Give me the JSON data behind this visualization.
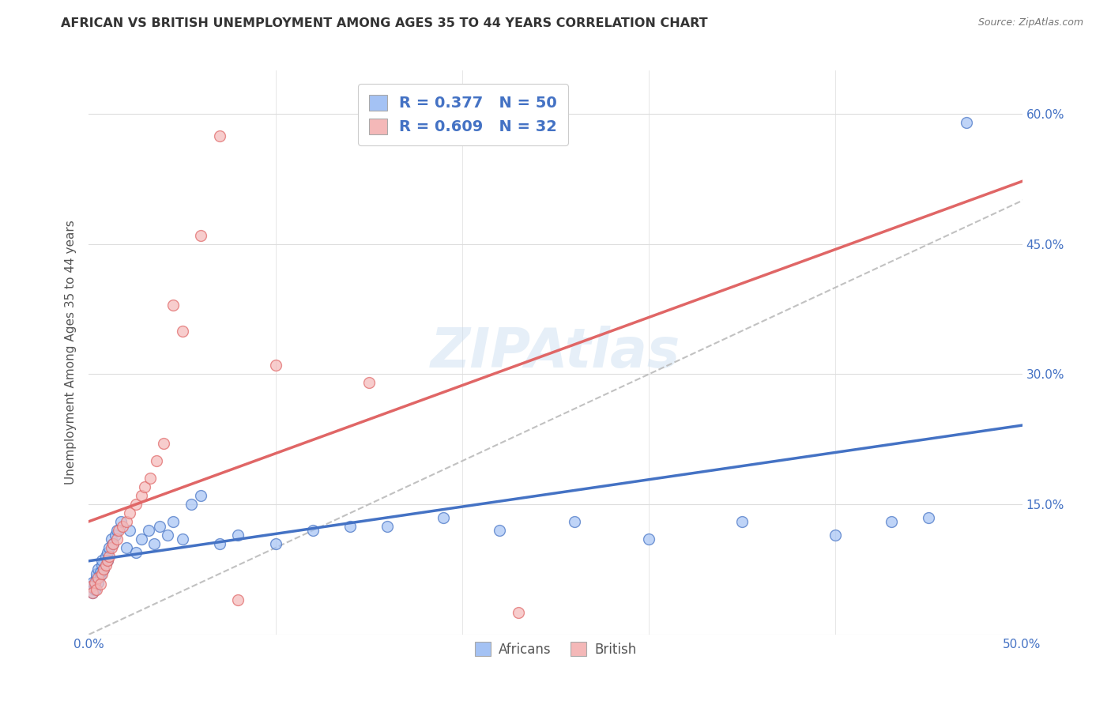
{
  "title": "AFRICAN VS BRITISH UNEMPLOYMENT AMONG AGES 35 TO 44 YEARS CORRELATION CHART",
  "source": "Source: ZipAtlas.com",
  "ylabel": "Unemployment Among Ages 35 to 44 years",
  "xlabel_africans": "Africans",
  "xlabel_british": "British",
  "xlim": [
    0.0,
    0.5
  ],
  "ylim": [
    0.0,
    0.65
  ],
  "legend_africans_R": "0.377",
  "legend_africans_N": "50",
  "legend_british_R": "0.609",
  "legend_british_N": "32",
  "color_africans": "#a4c2f4",
  "color_british": "#f4b8b8",
  "color_africans_line": "#4472c4",
  "color_british_line": "#e06666",
  "color_diagonal": "#bbbbbb",
  "africans_x": [
    0.001,
    0.002,
    0.002,
    0.003,
    0.003,
    0.004,
    0.004,
    0.005,
    0.005,
    0.006,
    0.006,
    0.007,
    0.007,
    0.008,
    0.009,
    0.01,
    0.01,
    0.011,
    0.012,
    0.013,
    0.014,
    0.015,
    0.017,
    0.02,
    0.022,
    0.025,
    0.028,
    0.032,
    0.035,
    0.038,
    0.042,
    0.045,
    0.05,
    0.055,
    0.06,
    0.07,
    0.08,
    0.1,
    0.12,
    0.14,
    0.16,
    0.19,
    0.22,
    0.26,
    0.3,
    0.35,
    0.4,
    0.43,
    0.45,
    0.47
  ],
  "africans_y": [
    0.055,
    0.048,
    0.06,
    0.052,
    0.058,
    0.065,
    0.07,
    0.06,
    0.075,
    0.068,
    0.072,
    0.08,
    0.085,
    0.075,
    0.09,
    0.085,
    0.095,
    0.1,
    0.11,
    0.105,
    0.115,
    0.12,
    0.13,
    0.1,
    0.12,
    0.095,
    0.11,
    0.12,
    0.105,
    0.125,
    0.115,
    0.13,
    0.11,
    0.15,
    0.16,
    0.105,
    0.115,
    0.105,
    0.12,
    0.125,
    0.125,
    0.135,
    0.12,
    0.13,
    0.11,
    0.13,
    0.115,
    0.13,
    0.135,
    0.59
  ],
  "british_x": [
    0.001,
    0.002,
    0.003,
    0.004,
    0.005,
    0.006,
    0.007,
    0.008,
    0.009,
    0.01,
    0.011,
    0.012,
    0.013,
    0.015,
    0.016,
    0.018,
    0.02,
    0.022,
    0.025,
    0.028,
    0.03,
    0.033,
    0.036,
    0.04,
    0.045,
    0.05,
    0.06,
    0.07,
    0.08,
    0.1,
    0.15,
    0.23
  ],
  "british_y": [
    0.055,
    0.048,
    0.06,
    0.052,
    0.065,
    0.058,
    0.07,
    0.075,
    0.08,
    0.085,
    0.09,
    0.1,
    0.105,
    0.11,
    0.12,
    0.125,
    0.13,
    0.14,
    0.15,
    0.16,
    0.17,
    0.18,
    0.2,
    0.22,
    0.38,
    0.35,
    0.46,
    0.575,
    0.04,
    0.31,
    0.29,
    0.025
  ]
}
